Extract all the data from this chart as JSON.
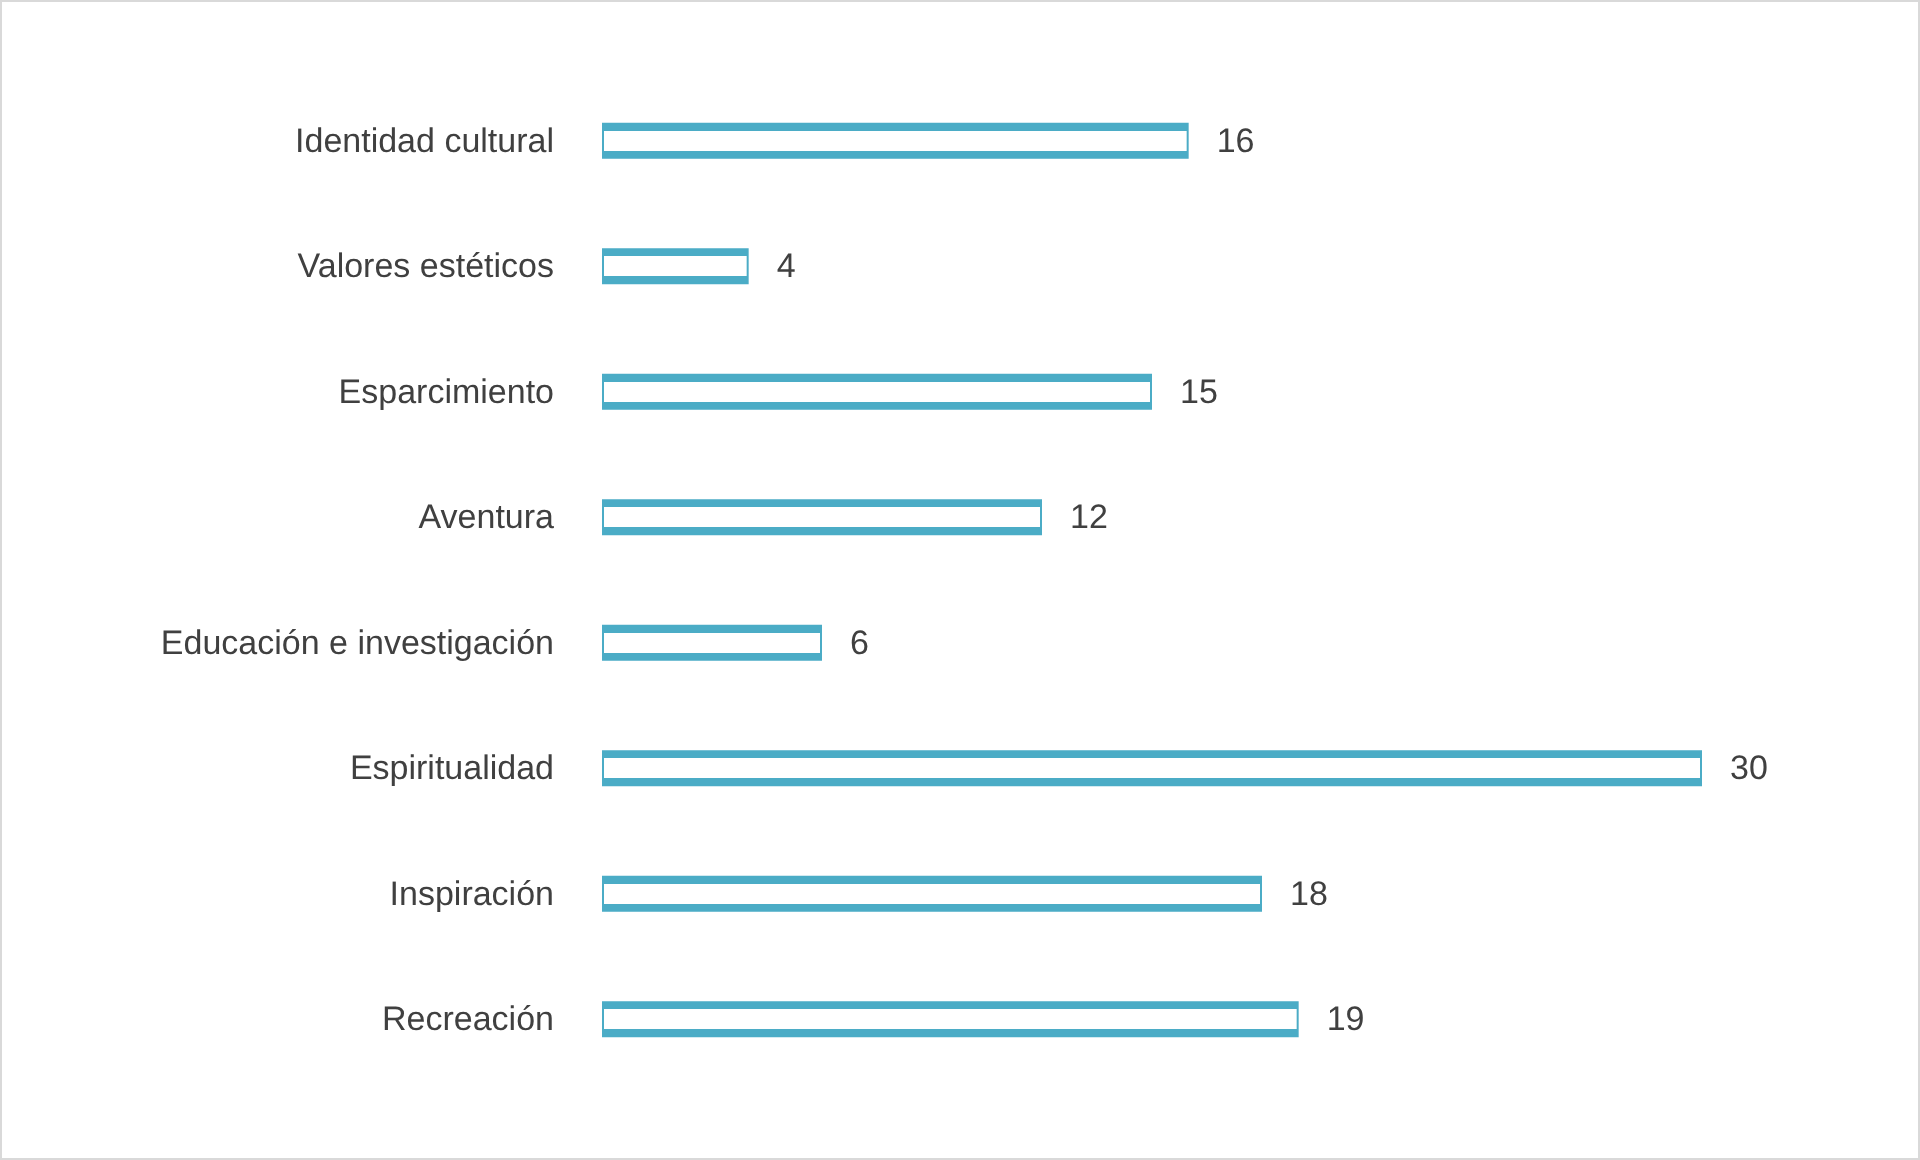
{
  "chart_data": {
    "type": "bar",
    "orientation": "horizontal",
    "categories": [
      "Identidad cultural",
      "Valores estéticos",
      "Esparcimiento",
      "Aventura",
      "Educación e investigación",
      "Espiritualidad",
      "Inspiración",
      "Recreación"
    ],
    "values": [
      16,
      4,
      15,
      12,
      6,
      30,
      18,
      19
    ],
    "color": "#4bacc6",
    "data_labels": true,
    "grid": false
  }
}
